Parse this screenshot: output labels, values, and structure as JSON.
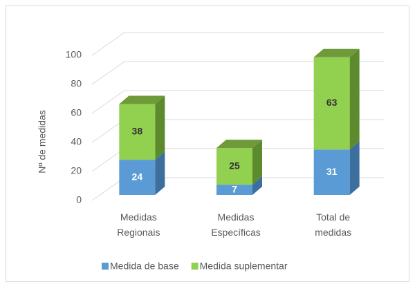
{
  "chart_data": {
    "type": "bar3d_stacked",
    "ylabel": "Nº de medidas",
    "categories": [
      "Medidas\nRegionais",
      "Medidas\nEspecíficas",
      "Total de\nmedidas"
    ],
    "series": [
      {
        "name": "Medida de base",
        "color": "#5b9bd5",
        "side": "#3d6f9e",
        "top": "#4a86bf",
        "label_color": "#ffffff",
        "values": [
          24,
          7,
          31
        ]
      },
      {
        "name": "Medida suplementar",
        "color": "#92d050",
        "side": "#5e8a2e",
        "top": "#6f9a3a",
        "label_color": "#333333",
        "values": [
          38,
          25,
          63
        ]
      }
    ],
    "ylim": [
      0,
      100
    ],
    "yticks": [
      0,
      20,
      40,
      60,
      80,
      100
    ],
    "grid": true,
    "legend": "bottom"
  }
}
